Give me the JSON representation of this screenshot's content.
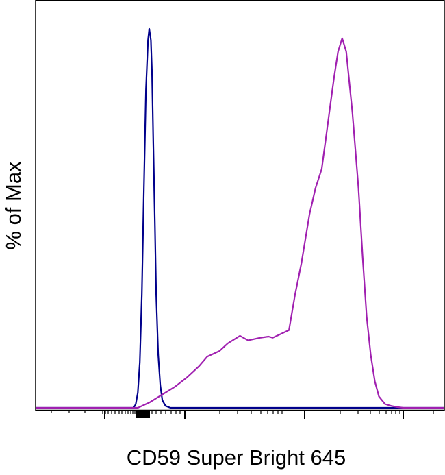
{
  "chart_data": {
    "type": "line",
    "title": "",
    "xlabel": "CD59 Super Bright 645",
    "ylabel": "% of Max",
    "xscale": "biexponential",
    "show_tick_labels": false,
    "grid": false,
    "xlim": [
      0,
      1
    ],
    "ylim": [
      0,
      100
    ],
    "series": [
      {
        "color": "#00008b",
        "x": [
          0,
          0.24,
          0.245,
          0.25,
          0.255,
          0.26,
          0.265,
          0.27,
          0.275,
          0.278,
          0.282,
          0.285,
          0.288,
          0.292,
          0.295,
          0.3,
          0.305,
          0.31,
          0.318,
          0.33,
          1
        ],
        "y": [
          0,
          0,
          1,
          4,
          12,
          30,
          58,
          84,
          97,
          100,
          97,
          88,
          70,
          48,
          30,
          14,
          6,
          2,
          0.5,
          0,
          0
        ]
      },
      {
        "color": "#a020b0",
        "x": [
          0,
          0.25,
          0.28,
          0.31,
          0.34,
          0.37,
          0.4,
          0.42,
          0.45,
          0.47,
          0.5,
          0.52,
          0.55,
          0.57,
          0.58,
          0.6,
          0.62,
          0.635,
          0.65,
          0.67,
          0.685,
          0.7,
          0.71,
          0.72,
          0.73,
          0.74,
          0.75,
          0.76,
          0.775,
          0.79,
          0.8,
          0.81,
          0.82,
          0.83,
          0.84,
          0.855,
          0.87,
          0.885,
          0.9,
          0.92,
          1
        ],
        "y": [
          0,
          0,
          1.5,
          3.5,
          5.5,
          8,
          11,
          13.5,
          15,
          17,
          19,
          17.8,
          18.5,
          18.8,
          18.5,
          19.5,
          20.5,
          30,
          38,
          51,
          58,
          63,
          71,
          79,
          87,
          94,
          97.5,
          94,
          78,
          58,
          40,
          24,
          14,
          7,
          3,
          1,
          0.5,
          0.2,
          0,
          0,
          0
        ]
      }
    ]
  }
}
